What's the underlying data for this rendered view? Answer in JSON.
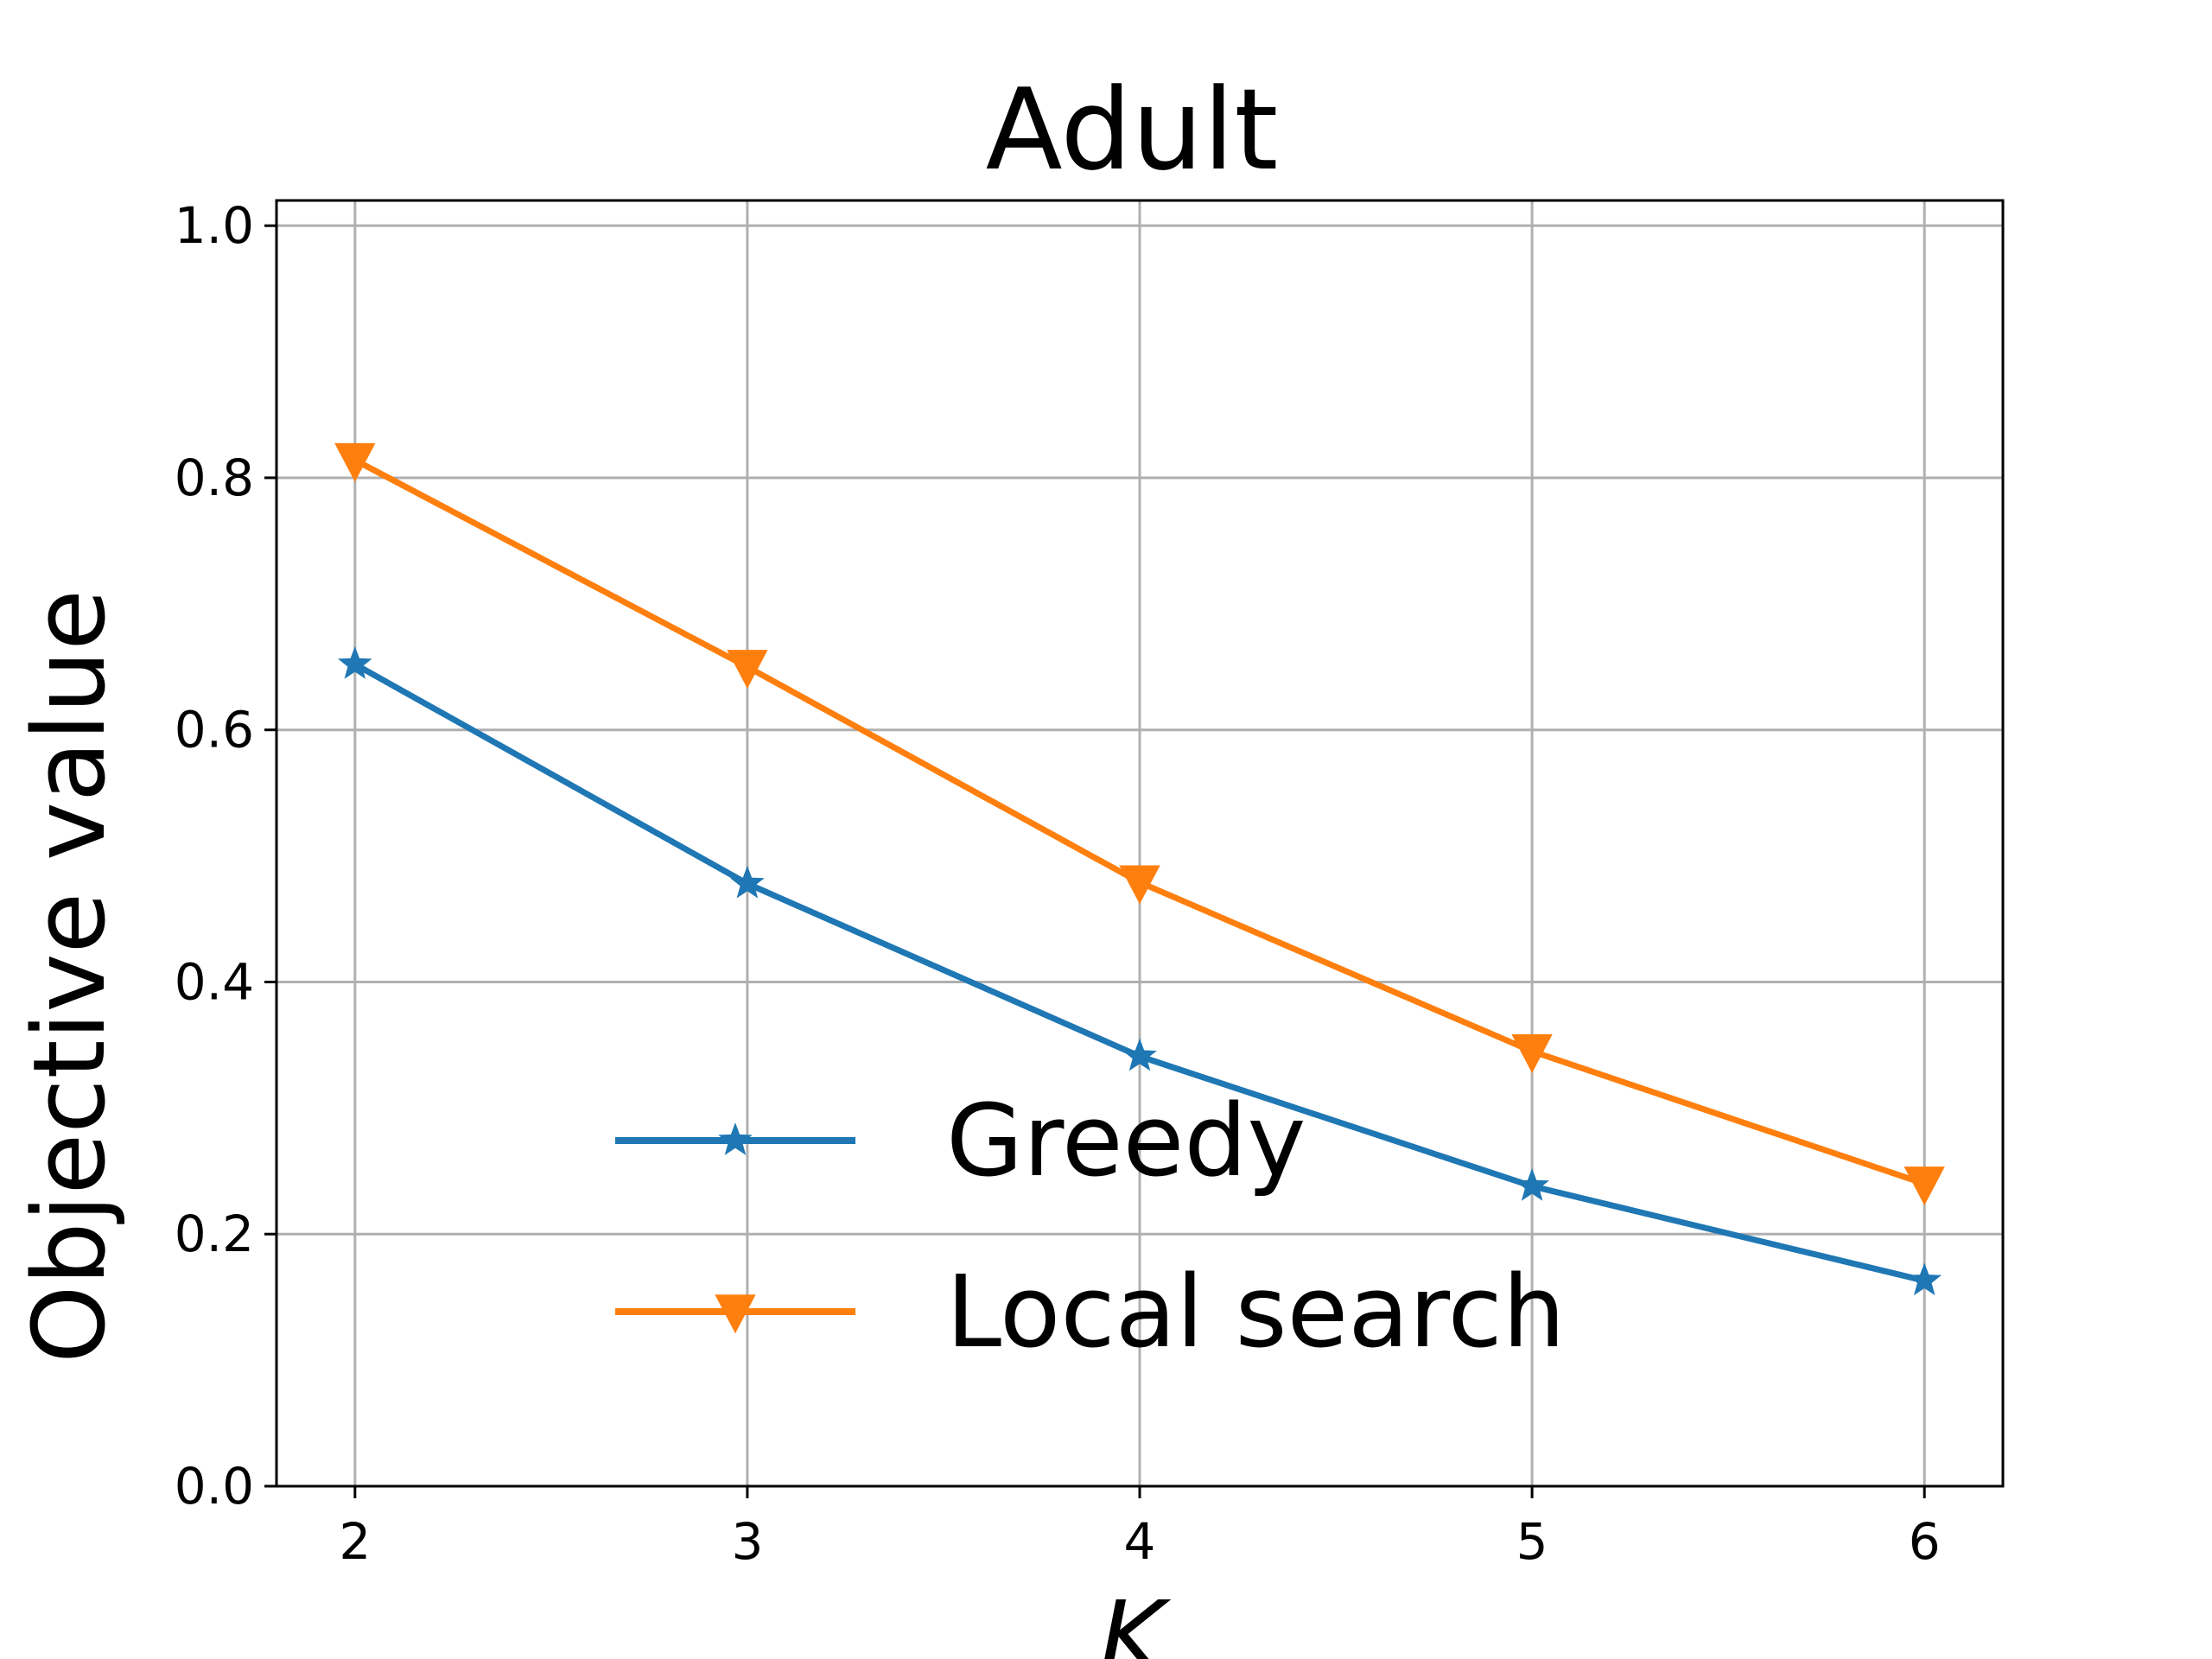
{
  "chart_data": {
    "type": "line",
    "title": "Adult",
    "xlabel": "K",
    "ylabel": "Objective value",
    "x": [
      2,
      3,
      4,
      5,
      6
    ],
    "xlim": [
      1.8,
      6.2
    ],
    "ylim": [
      0.0,
      1.02
    ],
    "xticks": [
      "2",
      "3",
      "4",
      "5",
      "6"
    ],
    "yticks": [
      "0.0",
      "0.2",
      "0.4",
      "0.6",
      "0.8",
      "1.0"
    ],
    "grid": true,
    "legend_position": "lower-center",
    "series": [
      {
        "name": "Greedy",
        "values": [
          0.652,
          0.478,
          0.341,
          0.238,
          0.163
        ],
        "color": "#1f77b4",
        "marker": "star"
      },
      {
        "name": "Local search",
        "values": [
          0.814,
          0.65,
          0.479,
          0.345,
          0.24
        ],
        "color": "#ff7f0e",
        "marker": "triangle-down"
      }
    ]
  }
}
